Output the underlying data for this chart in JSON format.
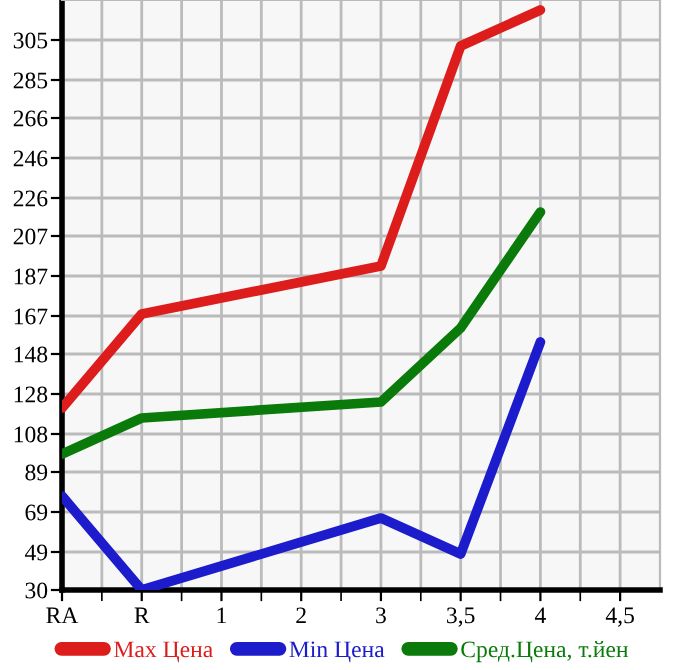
{
  "chart_data": {
    "type": "line",
    "categories": [
      "RA",
      "R",
      "1",
      "2",
      "3",
      "3,5",
      "4",
      "4,5"
    ],
    "series": [
      {
        "name": "Max Цена",
        "color": "#dd1c1c",
        "values": [
          121,
          168,
          null,
          null,
          192,
          302,
          320,
          null
        ]
      },
      {
        "name": "Min Цена",
        "color": "#1c1ccc",
        "values": [
          77,
          30,
          null,
          null,
          66,
          48,
          154,
          null
        ]
      },
      {
        "name": "Сред.Цена, т.йен",
        "color": "#0a7a0a",
        "values": [
          98,
          116,
          null,
          null,
          124,
          161,
          219,
          null
        ]
      }
    ],
    "ylim": [
      30,
      325
    ],
    "yticks": [
      30,
      49,
      69,
      89,
      108,
      128,
      148,
      167,
      187,
      207,
      226,
      246,
      266,
      285,
      305
    ],
    "grid": true,
    "legend": "bottom",
    "marker": "none",
    "line_style": "solid"
  }
}
